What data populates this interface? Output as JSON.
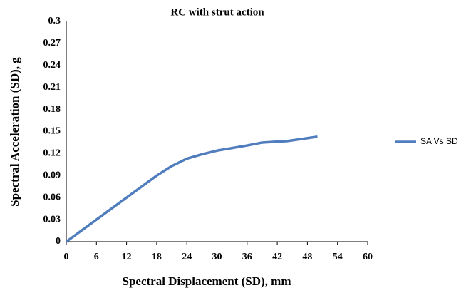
{
  "chart_data": {
    "type": "line",
    "title": "RC with strut action",
    "xlabel": "Spectral Displacement (SD), mm",
    "ylabel": "Spectral Acceleration (SD), g",
    "x": [
      0,
      6,
      12,
      18,
      21,
      24,
      27,
      30,
      36,
      39,
      44,
      50
    ],
    "series": [
      {
        "name": "SA Vs SD",
        "color": "#4f7dbd",
        "values": [
          0,
          0.03,
          0.06,
          0.09,
          0.103,
          0.113,
          0.119,
          0.124,
          0.131,
          0.135,
          0.137,
          0.143
        ]
      }
    ],
    "xlim": [
      0,
      60
    ],
    "xticks": [
      0,
      6,
      12,
      18,
      24,
      30,
      36,
      42,
      48,
      54,
      60
    ],
    "ylim": [
      0,
      0.3
    ],
    "yticks": [
      0,
      0.03,
      0.06,
      0.09,
      0.12,
      0.15,
      0.18,
      0.21,
      0.24,
      0.27,
      0.3
    ],
    "grid": false,
    "legend": "right"
  }
}
